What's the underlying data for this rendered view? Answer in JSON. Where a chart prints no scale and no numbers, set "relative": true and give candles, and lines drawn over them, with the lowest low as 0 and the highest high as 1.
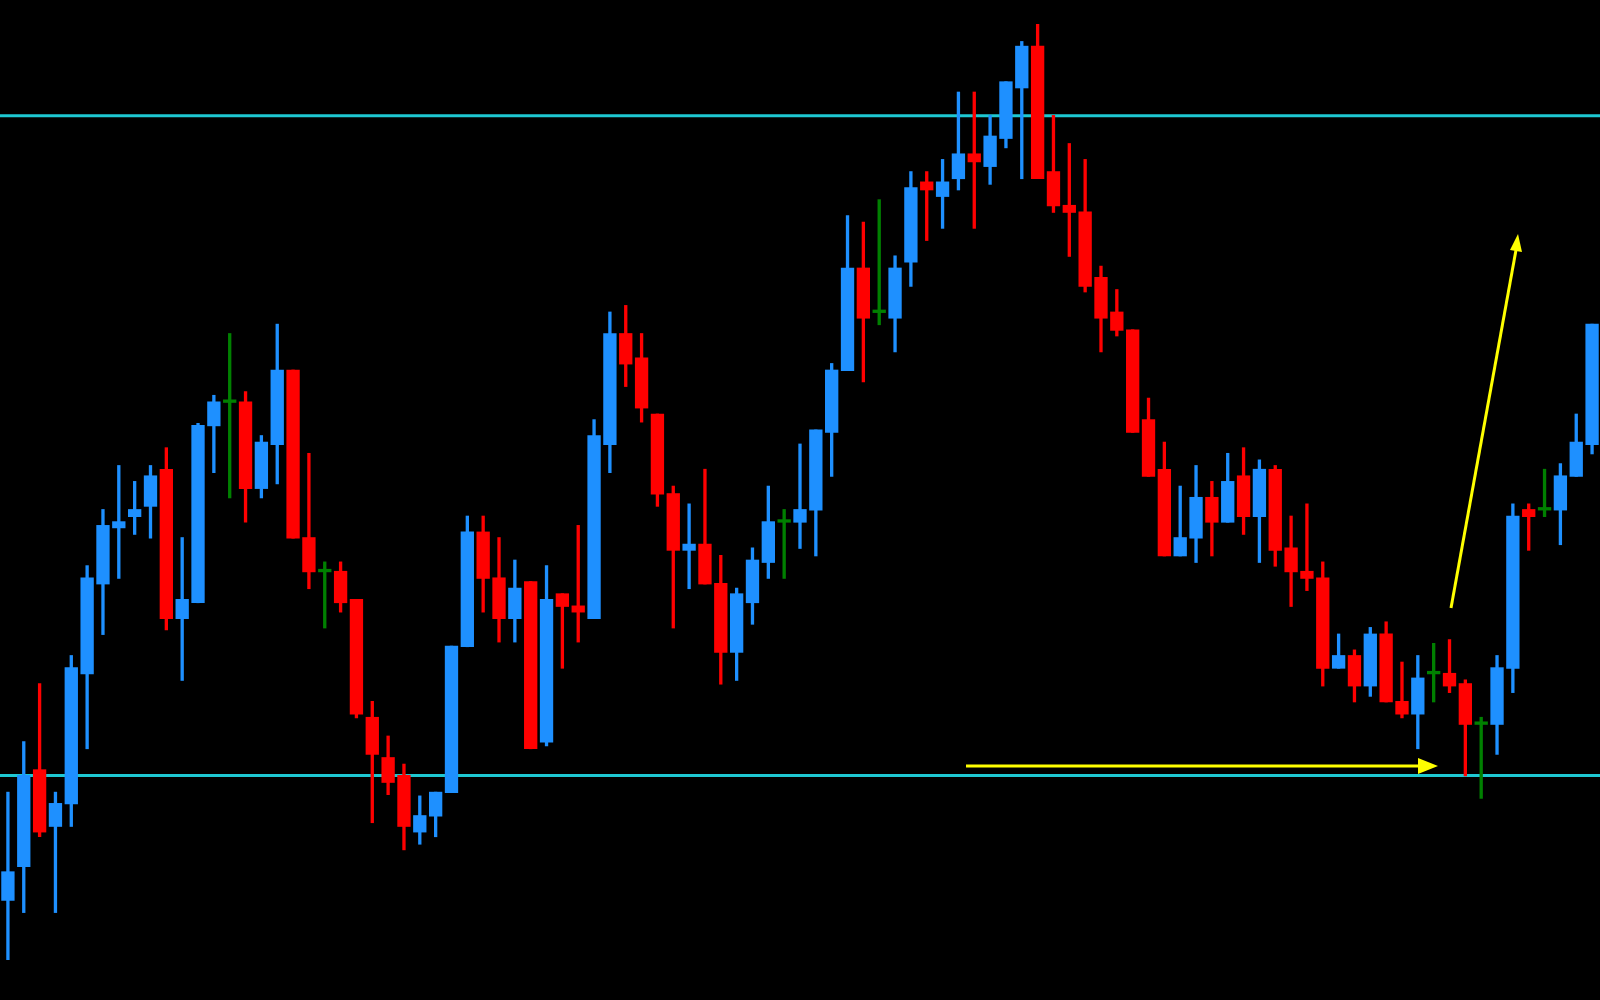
{
  "chart_data": {
    "type": "candlestick",
    "relative": true,
    "categories": [
      null,
      null,
      null,
      null,
      null,
      null,
      null,
      null,
      null,
      null,
      null,
      null,
      null,
      null,
      null,
      null,
      null,
      null,
      null,
      null,
      null,
      null,
      null,
      null,
      null,
      null,
      null,
      null,
      null,
      null,
      null,
      null,
      null,
      null,
      null,
      null,
      null,
      null,
      null,
      null,
      null,
      null,
      null,
      null,
      null,
      null,
      null,
      null,
      null,
      null,
      null,
      null,
      null,
      null,
      null,
      null,
      null,
      null,
      null,
      null,
      null,
      null,
      null,
      null,
      null,
      null,
      null,
      null,
      null,
      null,
      null,
      null,
      null,
      null,
      null,
      null,
      null,
      null,
      null,
      null,
      null,
      null,
      null,
      null,
      null,
      null,
      null,
      null,
      null,
      null,
      null,
      null,
      null,
      null,
      null,
      null,
      null,
      null,
      null,
      null,
      null
    ],
    "ohlc": [
      [
        0.064,
        0.179,
        0,
        0.094
      ],
      [
        0.1,
        0.233,
        0.051,
        0.197
      ],
      [
        0.203,
        0.295,
        0.132,
        0.137
      ],
      [
        0.143,
        0.179,
        0.051,
        0.167
      ],
      [
        0.167,
        0.325,
        0.143,
        0.312
      ],
      [
        0.306,
        0.421,
        0.226,
        0.408
      ],
      [
        0.402,
        0.481,
        0.348,
        0.464
      ],
      [
        0.462,
        0.528,
        0.408,
        0.468
      ],
      [
        0.474,
        0.511,
        0.455,
        0.481
      ],
      [
        0.485,
        0.528,
        0.451,
        0.517
      ],
      [
        0.524,
        0.547,
        0.353,
        0.365
      ],
      [
        0.365,
        0.451,
        0.299,
        0.385
      ],
      [
        0.382,
        0.573,
        0.382,
        0.571
      ],
      [
        0.571,
        0.603,
        0.521,
        0.596
      ],
      [
        0.596,
        0.669,
        0.494,
        0.596
      ],
      [
        0.596,
        0.607,
        0.468,
        0.504
      ],
      [
        0.504,
        0.56,
        0.494,
        0.553
      ],
      [
        0.551,
        0.679,
        0.509,
        0.63
      ],
      [
        0.63,
        0.63,
        0.451,
        0.451
      ],
      [
        0.451,
        0.541,
        0.397,
        0.415
      ],
      [
        0.415,
        0.425,
        0.355,
        0.415
      ],
      [
        0.415,
        0.425,
        0.372,
        0.382
      ],
      [
        0.385,
        0.385,
        0.259,
        0.263
      ],
      [
        0.259,
        0.276,
        0.147,
        0.22
      ],
      [
        0.216,
        0.239,
        0.177,
        0.19
      ],
      [
        0.197,
        0.209,
        0.118,
        0.143
      ],
      [
        0.137,
        0.175,
        0.124,
        0.154
      ],
      [
        0.154,
        0.179,
        0.132,
        0.179
      ],
      [
        0.179,
        0.335,
        0.179,
        0.335
      ],
      [
        0.335,
        0.474,
        0.335,
        0.457
      ],
      [
        0.457,
        0.474,
        0.372,
        0.408
      ],
      [
        0.408,
        0.451,
        0.34,
        0.365
      ],
      [
        0.365,
        0.427,
        0.34,
        0.397
      ],
      [
        0.404,
        0.404,
        0.226,
        0.226
      ],
      [
        0.233,
        0.421,
        0.229,
        0.385
      ],
      [
        0.391,
        0.391,
        0.312,
        0.378
      ],
      [
        0.378,
        0.464,
        0.34,
        0.372
      ],
      [
        0.365,
        0.577,
        0.365,
        0.56
      ],
      [
        0.551,
        0.692,
        0.521,
        0.669
      ],
      [
        0.669,
        0.699,
        0.613,
        0.637
      ],
      [
        0.643,
        0.669,
        0.575,
        0.59
      ],
      [
        0.583,
        0.583,
        0.485,
        0.498
      ],
      [
        0.498,
        0.506,
        0.355,
        0.438
      ],
      [
        0.438,
        0.487,
        0.397,
        0.444
      ],
      [
        0.444,
        0.524,
        0.402,
        0.402
      ],
      [
        0.402,
        0.432,
        0.295,
        0.329
      ],
      [
        0.329,
        0.397,
        0.299,
        0.391
      ],
      [
        0.382,
        0.44,
        0.359,
        0.427
      ],
      [
        0.425,
        0.506,
        0.408,
        0.468
      ],
      [
        0.468,
        0.481,
        0.408,
        0.468
      ],
      [
        0.468,
        0.551,
        0.44,
        0.481
      ],
      [
        0.481,
        0.566,
        0.432,
        0.566
      ],
      [
        0.564,
        0.637,
        0.517,
        0.63
      ],
      [
        0.63,
        0.795,
        0.63,
        0.739
      ],
      [
        0.739,
        0.788,
        0.618,
        0.686
      ],
      [
        0.692,
        0.812,
        0.679,
        0.692
      ],
      [
        0.686,
        0.752,
        0.65,
        0.739
      ],
      [
        0.746,
        0.842,
        0.72,
        0.825
      ],
      [
        0.831,
        0.842,
        0.769,
        0.823
      ],
      [
        0.816,
        0.855,
        0.782,
        0.831
      ],
      [
        0.835,
        0.927,
        0.823,
        0.861
      ],
      [
        0.861,
        0.927,
        0.782,
        0.853
      ],
      [
        0.848,
        0.902,
        0.829,
        0.88
      ],
      [
        0.878,
        0.938,
        0.868,
        0.938
      ],
      [
        0.932,
        0.981,
        0.835,
        0.976
      ],
      [
        0.976,
        1,
        0.835,
        0.835
      ],
      [
        0.842,
        0.902,
        0.799,
        0.806
      ],
      [
        0.806,
        0.872,
        0.752,
        0.799
      ],
      [
        0.799,
        0.855,
        0.714,
        0.72
      ],
      [
        0.729,
        0.741,
        0.65,
        0.686
      ],
      [
        0.692,
        0.716,
        0.667,
        0.673
      ],
      [
        0.673,
        0.673,
        0.564,
        0.564
      ],
      [
        0.577,
        0.6,
        0.517,
        0.517
      ],
      [
        0.524,
        0.553,
        0.432,
        0.432
      ],
      [
        0.432,
        0.506,
        0.432,
        0.451
      ],
      [
        0.451,
        0.528,
        0.425,
        0.494
      ],
      [
        0.494,
        0.511,
        0.432,
        0.468
      ],
      [
        0.468,
        0.541,
        0.468,
        0.511
      ],
      [
        0.517,
        0.547,
        0.455,
        0.474
      ],
      [
        0.474,
        0.534,
        0.425,
        0.524
      ],
      [
        0.524,
        0.528,
        0.421,
        0.438
      ],
      [
        0.44,
        0.474,
        0.378,
        0.415
      ],
      [
        0.415,
        0.487,
        0.395,
        0.408
      ],
      [
        0.408,
        0.425,
        0.293,
        0.312
      ],
      [
        0.312,
        0.348,
        0.312,
        0.325
      ],
      [
        0.325,
        0.331,
        0.276,
        0.293
      ],
      [
        0.293,
        0.355,
        0.282,
        0.348
      ],
      [
        0.348,
        0.361,
        0.276,
        0.276
      ],
      [
        0.276,
        0.318,
        0.259,
        0.263
      ],
      [
        0.263,
        0.325,
        0.226,
        0.301
      ],
      [
        0.306,
        0.338,
        0.276,
        0.306
      ],
      [
        0.306,
        0.342,
        0.286,
        0.293
      ],
      [
        0.295,
        0.299,
        0.197,
        0.252
      ],
      [
        0.252,
        0.259,
        0.173,
        0.252
      ],
      [
        0.252,
        0.325,
        0.22,
        0.312
      ],
      [
        0.312,
        0.487,
        0.286,
        0.474
      ],
      [
        0.481,
        0.487,
        0.438,
        0.474
      ],
      [
        0.481,
        0.524,
        0.474,
        0.481
      ],
      [
        0.481,
        0.53,
        0.444,
        0.517
      ],
      [
        0.517,
        0.583,
        0.517,
        0.553
      ],
      [
        0.551,
        0.679,
        0.541,
        0.679
      ]
    ],
    "colors": [
      "#1e90ff",
      "#1e90ff",
      "#ff0000",
      "#1e90ff",
      "#1e90ff",
      "#1e90ff",
      "#1e90ff",
      "#1e90ff",
      "#1e90ff",
      "#1e90ff",
      "#ff0000",
      "#1e90ff",
      "#1e90ff",
      "#1e90ff",
      "#008000",
      "#ff0000",
      "#1e90ff",
      "#1e90ff",
      "#ff0000",
      "#ff0000",
      "#008000",
      "#ff0000",
      "#ff0000",
      "#ff0000",
      "#ff0000",
      "#ff0000",
      "#1e90ff",
      "#1e90ff",
      "#1e90ff",
      "#1e90ff",
      "#ff0000",
      "#ff0000",
      "#1e90ff",
      "#ff0000",
      "#1e90ff",
      "#ff0000",
      "#ff0000",
      "#1e90ff",
      "#1e90ff",
      "#ff0000",
      "#ff0000",
      "#ff0000",
      "#ff0000",
      "#1e90ff",
      "#ff0000",
      "#ff0000",
      "#1e90ff",
      "#1e90ff",
      "#1e90ff",
      "#008000",
      "#1e90ff",
      "#1e90ff",
      "#1e90ff",
      "#1e90ff",
      "#ff0000",
      "#008000",
      "#1e90ff",
      "#1e90ff",
      "#ff0000",
      "#1e90ff",
      "#1e90ff",
      "#ff0000",
      "#1e90ff",
      "#1e90ff",
      "#1e90ff",
      "#ff0000",
      "#ff0000",
      "#ff0000",
      "#ff0000",
      "#ff0000",
      "#ff0000",
      "#ff0000",
      "#ff0000",
      "#ff0000",
      "#1e90ff",
      "#1e90ff",
      "#ff0000",
      "#1e90ff",
      "#ff0000",
      "#1e90ff",
      "#ff0000",
      "#ff0000",
      "#ff0000",
      "#ff0000",
      "#1e90ff",
      "#ff0000",
      "#1e90ff",
      "#ff0000",
      "#ff0000",
      "#1e90ff",
      "#008000",
      "#ff0000",
      "#ff0000",
      "#008000",
      "#1e90ff",
      "#1e90ff",
      "#ff0000",
      "#008000",
      "#1e90ff",
      "#1e90ff",
      "#1e90ff"
    ],
    "ref_lines": [
      {
        "axis": "y",
        "value": 0.197,
        "color": "#1ec8d2"
      },
      {
        "axis": "y",
        "value": 0.902,
        "color": "#1ec8d2"
      }
    ]
  }
}
